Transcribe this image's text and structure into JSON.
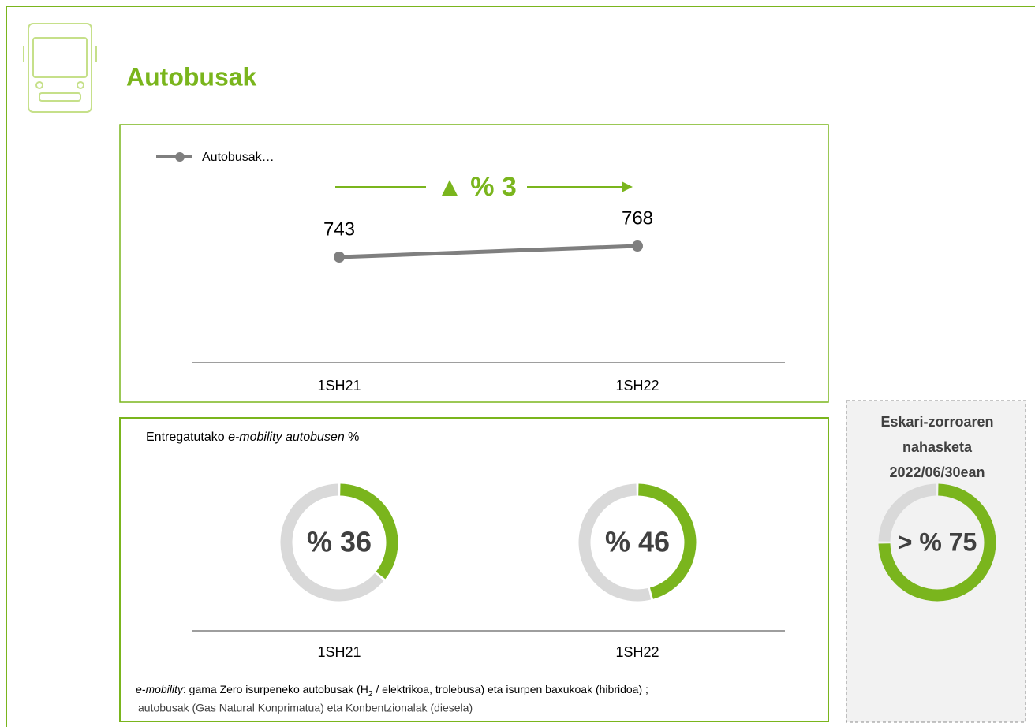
{
  "header": {
    "title": "Autobusak"
  },
  "chart_data": [
    {
      "type": "line",
      "categories": [
        "1SH21",
        "1SH22"
      ],
      "series": [
        {
          "name": "Autobusak…",
          "color": "#7f7f7f",
          "values": [
            743,
            768
          ]
        }
      ],
      "annotation": "▲ % 3",
      "legend": "top-left"
    },
    {
      "type": "donut",
      "title": [
        "Entregatutako ",
        "e-mobility autobusen",
        " %"
      ],
      "categories": [
        "1SH21",
        "1SH22"
      ],
      "values": [
        36,
        46
      ],
      "value_labels": [
        "% 36",
        "% 46"
      ],
      "color": "#7ab51d"
    },
    {
      "type": "donut",
      "title": [
        "Eskari-zorroaren",
        "nahasketa",
        "2022/06/30ean"
      ],
      "values": [
        75
      ],
      "value_labels": [
        "> % 75"
      ],
      "color": "#7ab51d"
    }
  ],
  "footnote": [
    "e-mobility",
    ": gama Zero isurpeneko autobusak (H",
    "2",
    " / elektrikoa, trolebusa) eta isurpen baxukoak (hibridoa)",
    " ;",
    "autobusak (Gas Natural Konprimatua) eta Konbentzionalak (diesela)"
  ]
}
